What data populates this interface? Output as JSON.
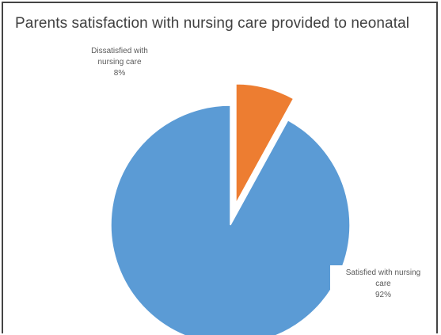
{
  "chart_data": {
    "type": "pie",
    "title": "Parents satisfaction with nursing care provided to neonatal",
    "slices": [
      {
        "label_lines": [
          "Satisfied with nursing",
          "care"
        ],
        "value_label": "92%",
        "value": 92,
        "color": "#5b9bd5",
        "exploded": false
      },
      {
        "label_lines": [
          "Dissatisfied with",
          "nursing care"
        ],
        "value_label": "8%",
        "value": 8,
        "color": "#ed7d31",
        "exploded": true
      }
    ]
  }
}
